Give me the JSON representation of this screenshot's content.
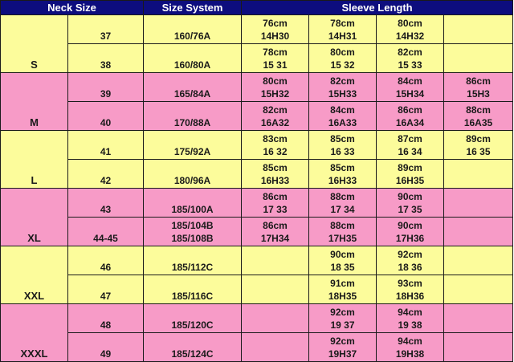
{
  "colors": {
    "header_bg": "#0d0d7e",
    "header_text": "#ffffff",
    "yellow_band": "#fcfc9b",
    "pink_band": "#f79bc7",
    "grid_line": "#1a1a1a"
  },
  "headers": {
    "neck_size": "Neck Size",
    "size_system": "Size System",
    "sleeve_length": "Sleeve Length"
  },
  "groups": [
    {
      "size": "S",
      "color": "yellow",
      "rows": [
        {
          "neck": "37",
          "system": "160/76A",
          "sleeves": [
            [
              "76cm",
              "14H30"
            ],
            [
              "78cm",
              "14H31"
            ],
            [
              "80cm",
              "14H32"
            ],
            []
          ]
        },
        {
          "neck": "38",
          "system": "160/80A",
          "sleeves": [
            [
              "78cm",
              "15 31"
            ],
            [
              "80cm",
              "15 32"
            ],
            [
              "82cm",
              "15 33"
            ],
            []
          ]
        }
      ]
    },
    {
      "size": "M",
      "color": "pink",
      "rows": [
        {
          "neck": "39",
          "system": "165/84A",
          "sleeves": [
            [
              "80cm",
              "15H32"
            ],
            [
              "82cm",
              "15H33"
            ],
            [
              "84cm",
              "15H34"
            ],
            [
              "86cm",
              "15H3"
            ]
          ]
        },
        {
          "neck": "40",
          "system": "170/88A",
          "sleeves": [
            [
              "82cm",
              "16A32"
            ],
            [
              "84cm",
              "16A33"
            ],
            [
              "86cm",
              "16A34"
            ],
            [
              "88cm",
              "16A35"
            ]
          ]
        }
      ]
    },
    {
      "size": "L",
      "color": "yellow",
      "rows": [
        {
          "neck": "41",
          "system": "175/92A",
          "sleeves": [
            [
              "83cm",
              "16 32"
            ],
            [
              "85cm",
              "16 33"
            ],
            [
              "87cm",
              "16 34"
            ],
            [
              "89cm",
              "16 35"
            ]
          ]
        },
        {
          "neck": "42",
          "system": "180/96A",
          "sleeves": [
            [
              "85cm",
              "16H33"
            ],
            [
              "85cm",
              "16H33"
            ],
            [
              "89cm",
              "16H35"
            ],
            []
          ]
        }
      ]
    },
    {
      "size": "XL",
      "color": "pink",
      "rows": [
        {
          "neck": "43",
          "system": "185/100A",
          "sleeves": [
            [
              "86cm",
              "17 33"
            ],
            [
              "88cm",
              "17 34"
            ],
            [
              "90cm",
              "17 35"
            ],
            []
          ]
        },
        {
          "neck": "44-45",
          "system": "185/104B\n185/108B",
          "sleeves": [
            [
              "86cm",
              "17H34"
            ],
            [
              "88cm",
              "17H35"
            ],
            [
              "90cm",
              "17H36"
            ],
            []
          ]
        }
      ]
    },
    {
      "size": "XXL",
      "color": "yellow",
      "rows": [
        {
          "neck": "46",
          "system": "185/112C",
          "sleeves": [
            [],
            [
              "90cm",
              "18 35"
            ],
            [
              "92cm",
              "18 36"
            ],
            []
          ]
        },
        {
          "neck": "47",
          "system": "185/116C",
          "sleeves": [
            [],
            [
              "91cm",
              "18H35"
            ],
            [
              "93cm",
              "18H36"
            ],
            []
          ]
        }
      ]
    },
    {
      "size": "XXXL",
      "color": "pink",
      "rows": [
        {
          "neck": "48",
          "system": "185/120C",
          "sleeves": [
            [],
            [
              "92cm",
              "19 37"
            ],
            [
              "94cm",
              "19 38"
            ],
            []
          ]
        },
        {
          "neck": "49",
          "system": "185/124C",
          "sleeves": [
            [],
            [
              "92cm",
              "19H37"
            ],
            [
              "94cm",
              "19H38"
            ],
            []
          ]
        }
      ]
    }
  ]
}
